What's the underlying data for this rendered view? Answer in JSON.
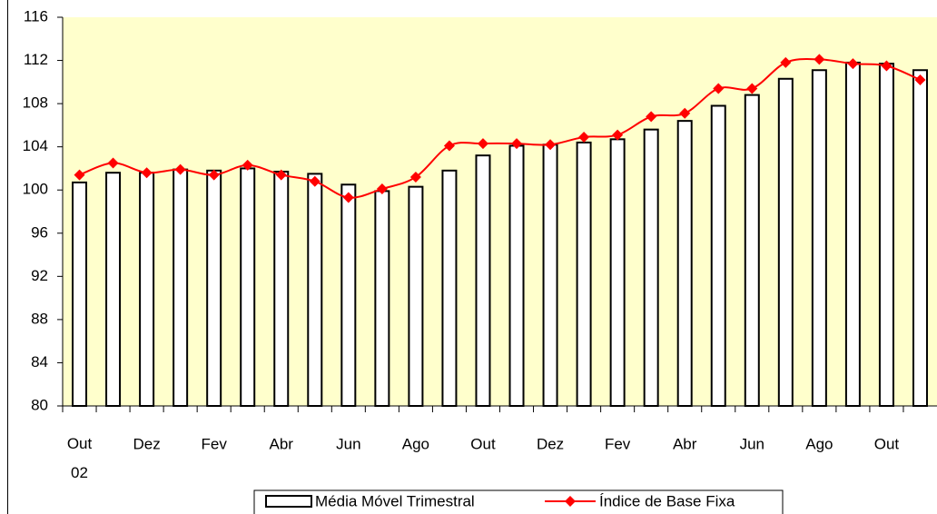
{
  "chart_data": {
    "type": "bar_line",
    "categories": [
      "Out 02",
      null,
      "Dez",
      null,
      "Fev",
      null,
      "Abr",
      null,
      "Jun",
      null,
      "Ago",
      null,
      "Out",
      null,
      "Dez",
      null,
      "Fev",
      null,
      "Abr",
      null,
      "Jun",
      null,
      "Ago",
      null,
      "Out",
      null
    ],
    "series": [
      {
        "name": "Média Móvel Trimestral",
        "type": "bar",
        "color": "#ffffff",
        "values": [
          100.7,
          101.6,
          101.6,
          101.9,
          101.8,
          102.0,
          101.7,
          101.5,
          100.5,
          99.9,
          100.3,
          101.8,
          103.2,
          104.1,
          104.2,
          104.4,
          104.7,
          105.6,
          106.4,
          107.8,
          108.8,
          110.3,
          111.1,
          111.8,
          111.7,
          111.1
        ]
      },
      {
        "name": "Índice de Base Fixa",
        "type": "line",
        "color": "#ff0000",
        "values": [
          101.4,
          102.5,
          101.6,
          101.9,
          101.4,
          102.3,
          101.4,
          100.8,
          99.3,
          100.1,
          101.2,
          104.1,
          104.3,
          104.3,
          104.2,
          104.9,
          105.1,
          106.8,
          107.1,
          109.4,
          109.4,
          111.8,
          112.1,
          111.7,
          111.5,
          110.2
        ]
      }
    ],
    "ylim": [
      80,
      116
    ],
    "yticks": [
      80,
      84,
      88,
      92,
      96,
      100,
      104,
      108,
      112,
      116
    ],
    "plot_background": "#ffffcc",
    "legend": "bottom"
  }
}
